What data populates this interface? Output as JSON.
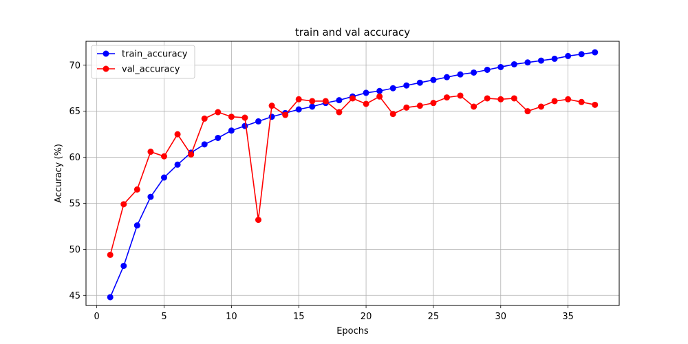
{
  "chart_data": {
    "type": "line",
    "title": "train and val accuracy",
    "xlabel": "Epochs",
    "ylabel": "Accuracy (%)",
    "xlim": [
      -0.8,
      38.8
    ],
    "ylim": [
      43.9,
      72.6
    ],
    "xticks": [
      0,
      5,
      10,
      15,
      20,
      25,
      30,
      35
    ],
    "yticks": [
      45,
      50,
      55,
      60,
      65,
      70
    ],
    "grid": true,
    "legend": "top-left",
    "x": [
      1,
      2,
      3,
      4,
      5,
      6,
      7,
      8,
      9,
      10,
      11,
      12,
      13,
      14,
      15,
      16,
      17,
      18,
      19,
      20,
      21,
      22,
      23,
      24,
      25,
      26,
      27,
      28,
      29,
      30,
      31,
      32,
      33,
      34,
      35,
      36,
      37
    ],
    "series": [
      {
        "name": "train_accuracy",
        "color": "#0000ff",
        "values": [
          44.8,
          48.2,
          52.6,
          55.7,
          57.8,
          59.2,
          60.5,
          61.4,
          62.1,
          62.9,
          63.4,
          63.9,
          64.4,
          64.8,
          65.2,
          65.5,
          65.9,
          66.2,
          66.6,
          67.0,
          67.2,
          67.5,
          67.8,
          68.1,
          68.4,
          68.7,
          69.0,
          69.2,
          69.5,
          69.8,
          70.1,
          70.3,
          70.5,
          70.7,
          71.0,
          71.2,
          71.4
        ]
      },
      {
        "name": "val_accuracy",
        "color": "#ff0000",
        "values": [
          49.4,
          54.9,
          56.5,
          60.6,
          60.1,
          62.5,
          60.3,
          64.2,
          64.9,
          64.4,
          64.3,
          53.2,
          65.6,
          64.6,
          66.3,
          66.1,
          66.1,
          64.9,
          66.4,
          65.8,
          66.6,
          64.7,
          65.4,
          65.6,
          65.9,
          66.5,
          66.7,
          65.5,
          66.4,
          66.3,
          66.4,
          65.0,
          65.5,
          66.1,
          66.3,
          66.0,
          65.7
        ]
      }
    ]
  }
}
